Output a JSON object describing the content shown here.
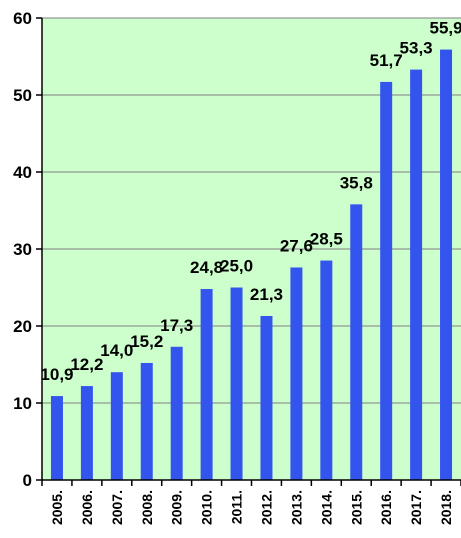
{
  "colors": {
    "plot_background": "#ccffcc",
    "bar": "#3355ee",
    "gridline": "#7f7f7f",
    "axis": "#000000"
  },
  "chart_data": {
    "type": "bar",
    "title": "",
    "xlabel": "",
    "ylabel": "",
    "categories": [
      "2005.",
      "2006.",
      "2007.",
      "2008.",
      "2009.",
      "2010.",
      "2011.",
      "2012.",
      "2013.",
      "2014.",
      "2015.",
      "2016.",
      "2017.",
      "2018."
    ],
    "values": [
      10.9,
      12.2,
      14.0,
      15.2,
      17.3,
      24.8,
      25.0,
      21.3,
      27.6,
      28.5,
      35.8,
      51.7,
      53.3,
      55.9
    ],
    "data_labels": [
      "10,9",
      "12,2",
      "14,0",
      "15,2",
      "17,3",
      "24,8",
      "25,0",
      "21,3",
      "27,6",
      "28,5",
      "35,8",
      "51,7",
      "53,3",
      "55,9"
    ],
    "ylim": [
      0,
      60
    ],
    "yticks": [
      0,
      10,
      20,
      30,
      40,
      50,
      60
    ],
    "grid": true,
    "legend": "none"
  }
}
